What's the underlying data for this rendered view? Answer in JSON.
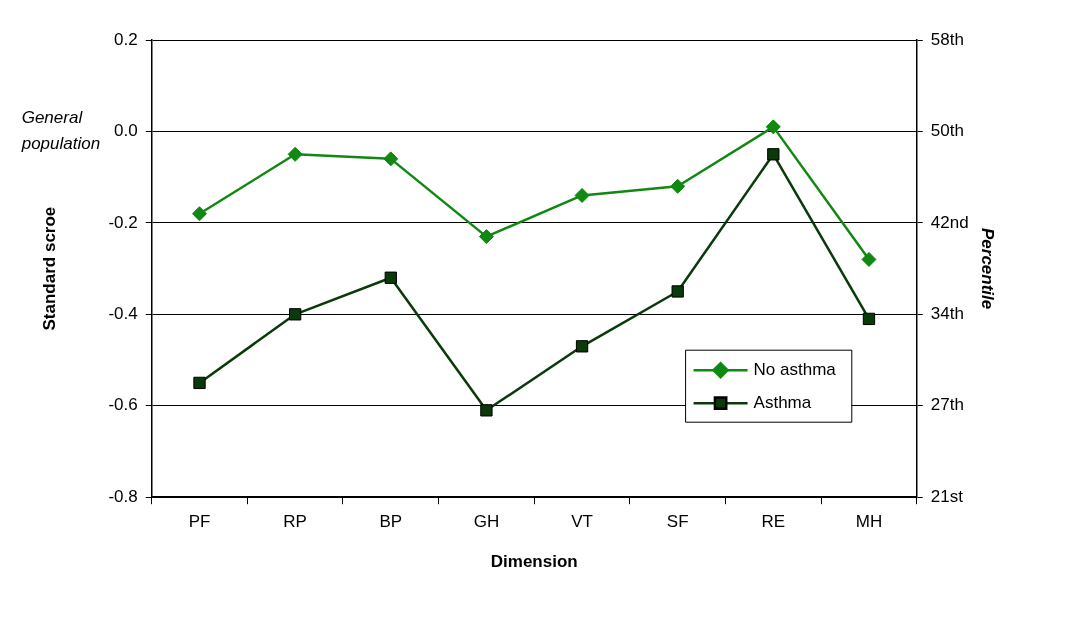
{
  "chart_data": {
    "type": "line",
    "categories": [
      "PF",
      "RP",
      "BP",
      "GH",
      "VT",
      "SF",
      "RE",
      "MH"
    ],
    "series": [
      {
        "name": "No asthma",
        "color": "#118811",
        "marker": "diamond",
        "values": [
          -0.18,
          -0.05,
          -0.06,
          -0.23,
          -0.14,
          -0.12,
          0.01,
          -0.28
        ]
      },
      {
        "name": "Asthma",
        "color": "#0a3a0a",
        "marker": "square",
        "values": [
          -0.55,
          -0.4,
          -0.32,
          -0.61,
          -0.47,
          -0.35,
          -0.05,
          -0.41
        ]
      }
    ],
    "xlabel": "Dimension",
    "ylabel": "Standard scroe",
    "y2label": "Percentile",
    "ylim": [
      -0.8,
      0.2
    ],
    "yticks": [
      {
        "value": -0.8,
        "label": "-0.8"
      },
      {
        "value": -0.6,
        "label": "-0.6"
      },
      {
        "value": -0.4,
        "label": "-0.4"
      },
      {
        "value": -0.2,
        "label": "-0.2"
      },
      {
        "value": 0,
        "label": "0.0"
      },
      {
        "value": 0.2,
        "label": "0.2"
      }
    ],
    "y2_categories": [
      "58th",
      "50th",
      "42nd",
      "34th",
      "27th",
      "21st"
    ],
    "annotations": [
      "General population"
    ],
    "grid": "y",
    "legend": "bottom right",
    "line_style": "solid"
  }
}
